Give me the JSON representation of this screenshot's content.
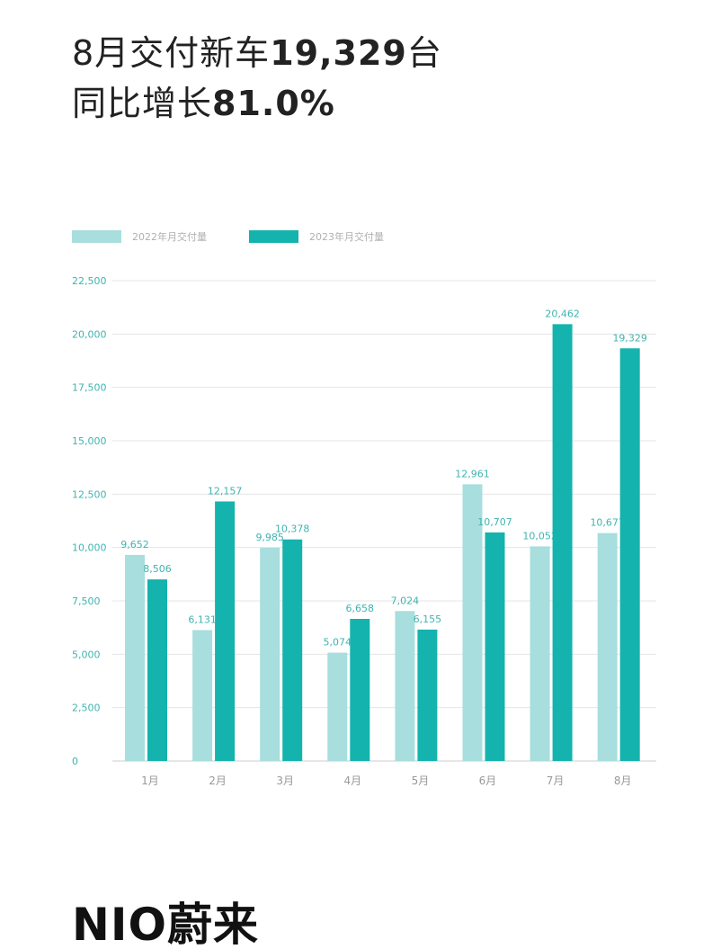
{
  "headline": {
    "line1_prefix": "8月交付新车",
    "line1_value": "19,329",
    "line1_suffix": "台",
    "line2_prefix": "同比增长",
    "line2_value": "81.0%"
  },
  "brand": {
    "logo_text": "NIO蔚来"
  },
  "colors": {
    "series_2022": "#a8dedd",
    "series_2023": "#14b3ae",
    "label": "#3fb4b0"
  },
  "chart_data": {
    "type": "bar",
    "categories": [
      "1月",
      "2月",
      "3月",
      "4月",
      "5月",
      "6月",
      "7月",
      "8月"
    ],
    "series": [
      {
        "name": "2022年月交付量",
        "values": [
          9652,
          6131,
          9985,
          5074,
          7024,
          12961,
          10052,
          10677
        ],
        "labels": [
          "9,652",
          "6,131",
          "9,985",
          "5,074",
          "7,024",
          "12,961",
          "10,052",
          "10,677"
        ]
      },
      {
        "name": "2023年月交付量",
        "values": [
          8506,
          12157,
          10378,
          6658,
          6155,
          10707,
          20462,
          19329
        ],
        "labels": [
          "8,506",
          "12,157",
          "10,378",
          "6,658",
          "6,155",
          "10,707",
          "20,462",
          "19,329"
        ]
      }
    ],
    "yticks": [
      "0",
      "2,500",
      "5,000",
      "7,500",
      "10,000",
      "12,500",
      "15,000",
      "17,500",
      "20,000",
      "22,500"
    ],
    "ylim": [
      0,
      22500
    ],
    "grid": true,
    "legend": "top-left",
    "xlabel": "",
    "ylabel": "",
    "title": ""
  }
}
